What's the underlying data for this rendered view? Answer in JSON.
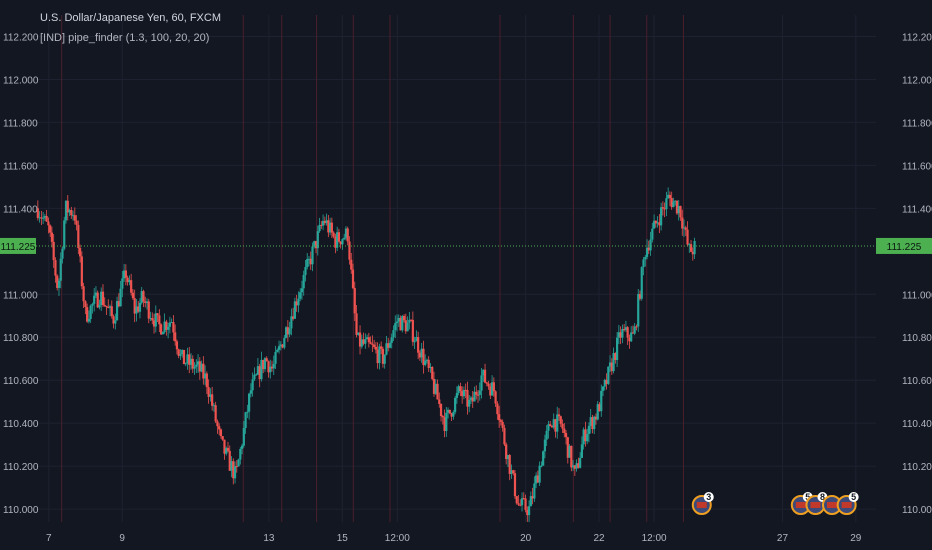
{
  "header": {
    "title": "U.S. Dollar/Japanese Yen, 60, FXCM",
    "indicator": "[IND] pipe_finder (1.3, 100, 20, 20)"
  },
  "colors": {
    "background": "#131722",
    "up": "#26a69a",
    "down": "#ef5350",
    "session_line": "#4a1f2b",
    "grid": "#1e2230",
    "last_price": "#4caf50"
  },
  "last_price": {
    "value": 111.225,
    "label": "111.225"
  },
  "events": [
    {
      "label": "3",
      "x": 24.8
    },
    {
      "label": "5",
      "x": 27.5
    },
    {
      "label": "8",
      "x": 27.9
    },
    {
      "label": "",
      "x": 28.35
    },
    {
      "label": "5",
      "x": 28.75
    }
  ],
  "chart_data": {
    "type": "candlestick",
    "y_ticks": [
      "112.200",
      "112.000",
      "111.800",
      "111.600",
      "111.400",
      "111.000",
      "110.800",
      "110.600",
      "110.400",
      "110.200",
      "110.000"
    ],
    "y_tick_values": [
      112.2,
      112.0,
      111.8,
      111.6,
      111.4,
      111.0,
      110.8,
      110.6,
      110.4,
      110.2,
      110.0
    ],
    "ylim": [
      109.94,
      112.3
    ],
    "x_ticks": [
      "7",
      "9",
      "13",
      "15",
      "12:00",
      "20",
      "22",
      "12:00",
      "27",
      "29"
    ],
    "x_tick_values": [
      7,
      9,
      13,
      15,
      16.5,
      20,
      22,
      23.5,
      27,
      29
    ],
    "xlim": [
      6.65,
      29.55
    ],
    "session_lines": [
      7.35,
      12.3,
      13.35,
      14.3,
      15.3,
      16.3,
      19.3,
      21.3,
      22.3,
      23.3,
      24.3
    ],
    "anchors": [
      [
        6.7,
        111.4
      ],
      [
        7.0,
        111.3
      ],
      [
        7.25,
        111.02
      ],
      [
        7.45,
        111.4
      ],
      [
        7.7,
        111.38
      ],
      [
        8.0,
        110.9
      ],
      [
        8.4,
        111.0
      ],
      [
        8.75,
        110.88
      ],
      [
        9.1,
        111.1
      ],
      [
        9.35,
        110.92
      ],
      [
        9.55,
        110.98
      ],
      [
        10.0,
        110.85
      ],
      [
        10.35,
        110.88
      ],
      [
        10.6,
        110.7
      ],
      [
        11.1,
        110.65
      ],
      [
        11.3,
        110.6
      ],
      [
        11.7,
        110.3
      ],
      [
        12.1,
        110.15
      ],
      [
        12.5,
        110.55
      ],
      [
        12.9,
        110.7
      ],
      [
        13.1,
        110.65
      ],
      [
        13.6,
        110.9
      ],
      [
        13.9,
        111.05
      ],
      [
        14.1,
        111.15
      ],
      [
        14.5,
        111.35
      ],
      [
        14.8,
        111.25
      ],
      [
        15.15,
        111.28
      ],
      [
        15.4,
        110.78
      ],
      [
        15.8,
        110.75
      ],
      [
        16.1,
        110.7
      ],
      [
        16.5,
        110.88
      ],
      [
        16.85,
        110.85
      ],
      [
        17.1,
        110.75
      ],
      [
        17.4,
        110.62
      ],
      [
        17.8,
        110.4
      ],
      [
        18.2,
        110.55
      ],
      [
        18.5,
        110.48
      ],
      [
        18.8,
        110.62
      ],
      [
        19.15,
        110.55
      ],
      [
        19.5,
        110.25
      ],
      [
        19.8,
        110.02
      ],
      [
        20.1,
        110.0
      ],
      [
        20.35,
        110.18
      ],
      [
        20.7,
        110.42
      ],
      [
        21.0,
        110.38
      ],
      [
        21.35,
        110.15
      ],
      [
        21.6,
        110.35
      ],
      [
        21.95,
        110.45
      ],
      [
        22.3,
        110.65
      ],
      [
        22.6,
        110.82
      ],
      [
        22.95,
        110.8
      ],
      [
        23.25,
        111.2
      ],
      [
        23.6,
        111.35
      ],
      [
        23.9,
        111.45
      ],
      [
        24.2,
        111.4
      ],
      [
        24.45,
        111.2
      ],
      [
        24.65,
        111.22
      ]
    ]
  }
}
